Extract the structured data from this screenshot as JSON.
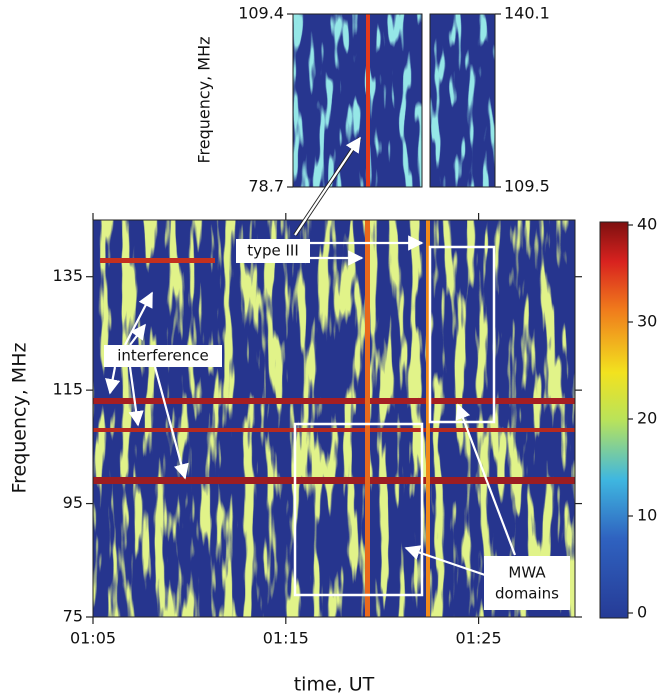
{
  "chart_data": [
    {
      "type": "spectrogram-inset",
      "ylabel": "Frequency, MHz",
      "panels": [
        {
          "ylim": [
            78.7,
            109.4
          ],
          "yticks": [
            78.7,
            109.4
          ]
        },
        {
          "ylim": [
            109.5,
            140.1
          ],
          "yticks": [
            109.5,
            140.1
          ]
        }
      ]
    },
    {
      "type": "spectrogram",
      "xlabel": "time, UT",
      "ylabel": "Frequency, MHz",
      "xlim": [
        "01:05",
        "01:30"
      ],
      "xticks": [
        "01:05",
        "01:15",
        "01:25"
      ],
      "ylim": [
        75,
        145
      ],
      "yticks": [
        75,
        95,
        115,
        135
      ],
      "colorbar": {
        "lim": [
          0,
          40
        ],
        "ticks": [
          0,
          10,
          20,
          30,
          40
        ]
      },
      "annotations": {
        "type_iii": "type III",
        "interference": "interference",
        "mwa": [
          "MWA",
          "domains"
        ]
      }
    }
  ]
}
